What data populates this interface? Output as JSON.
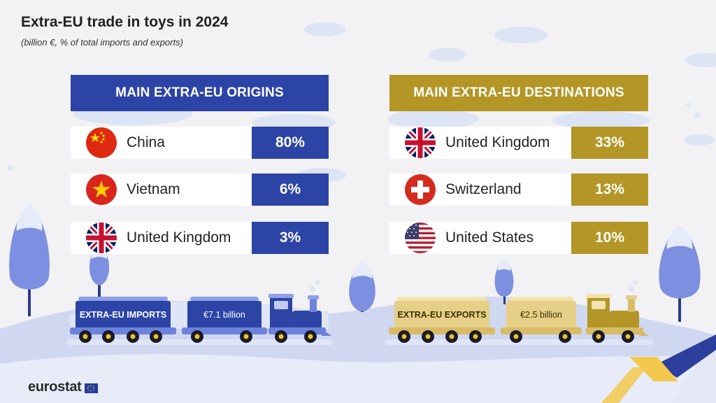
{
  "title": "Extra-EU trade in toys in 2024",
  "subtitle": "(billion €, % of total imports and exports)",
  "colors": {
    "origins_accent": "#2c44a6",
    "destinations_accent": "#b39626",
    "background": "#f2f2f4"
  },
  "origins": {
    "header": "MAIN EXTRA-EU ORIGINS",
    "items": [
      {
        "country": "China",
        "share": "80%",
        "flag_icon": "china-flag-icon"
      },
      {
        "country": "Vietnam",
        "share": "6%",
        "flag_icon": "vietnam-flag-icon"
      },
      {
        "country": "United Kingdom",
        "share": "3%",
        "flag_icon": "uk-flag-icon"
      }
    ]
  },
  "destinations": {
    "header": "MAIN EXTRA-EU DESTINATIONS",
    "items": [
      {
        "country": "United Kingdom",
        "share": "33%",
        "flag_icon": "uk-flag-icon"
      },
      {
        "country": "Switzerland",
        "share": "13%",
        "flag_icon": "switzerland-flag-icon"
      },
      {
        "country": "United States",
        "share": "10%",
        "flag_icon": "usa-flag-icon"
      }
    ]
  },
  "imports_train": {
    "label": "EXTRA-EU IMPORTS",
    "value": "€7.1 billion"
  },
  "exports_train": {
    "label": "EXTRA-EU EXPORTS",
    "value": "€2.5 billion"
  },
  "footer": {
    "logo_text": "eurostat"
  }
}
